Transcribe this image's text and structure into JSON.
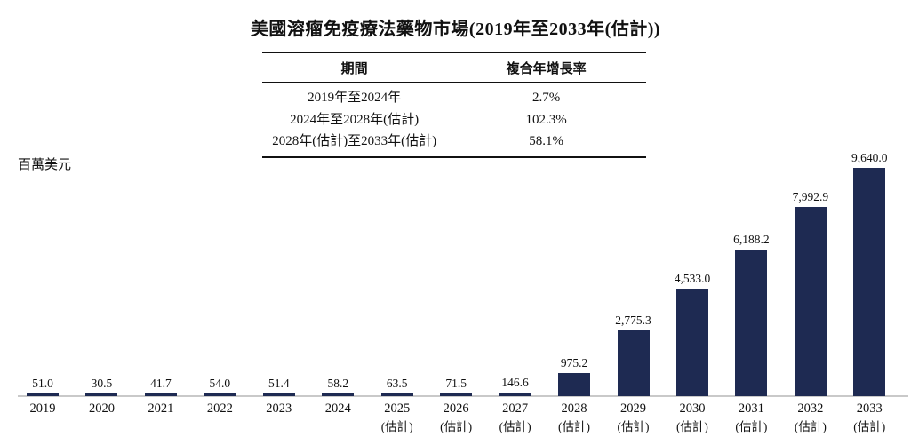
{
  "table": {
    "headers": [
      "期間",
      "複合年增長率"
    ],
    "rows": [
      [
        "2019年至2024年",
        "2.7%"
      ],
      [
        "2024年至2028年(估計)",
        "102.3%"
      ],
      [
        "2028年(估計)至2033年(估計)",
        "58.1%"
      ]
    ]
  },
  "chart_data": {
    "type": "bar",
    "title": "美國溶瘤免疫療法藥物市場(2019年至2033年(估計))",
    "ylabel": "百萬美元",
    "unit": "百萬美元",
    "categories": [
      {
        "label": "2019",
        "sublabel": ""
      },
      {
        "label": "2020",
        "sublabel": ""
      },
      {
        "label": "2021",
        "sublabel": ""
      },
      {
        "label": "2022",
        "sublabel": ""
      },
      {
        "label": "2023",
        "sublabel": ""
      },
      {
        "label": "2024",
        "sublabel": ""
      },
      {
        "label": "2025",
        "sublabel": "(估計)"
      },
      {
        "label": "2026",
        "sublabel": "(估計)"
      },
      {
        "label": "2027",
        "sublabel": "(估計)"
      },
      {
        "label": "2028",
        "sublabel": "(估計)"
      },
      {
        "label": "2029",
        "sublabel": "(估計)"
      },
      {
        "label": "2030",
        "sublabel": "(估計)"
      },
      {
        "label": "2031",
        "sublabel": "(估計)"
      },
      {
        "label": "2032",
        "sublabel": "(估計)"
      },
      {
        "label": "2033",
        "sublabel": "(估計)"
      }
    ],
    "values": [
      51.0,
      30.5,
      41.7,
      54.0,
      51.4,
      58.2,
      63.5,
      71.5,
      146.6,
      975.2,
      2775.3,
      4533.0,
      6188.2,
      7992.9,
      9640.0
    ],
    "value_labels": [
      "51.0",
      "30.5",
      "41.7",
      "54.0",
      "51.4",
      "58.2",
      "63.5",
      "71.5",
      "146.6",
      "975.2",
      "2,775.3",
      "4,533.0",
      "6,188.2",
      "7,992.9",
      "9,640.0"
    ],
    "ylim": [
      0,
      9640
    ],
    "grid": "off",
    "legend": "none",
    "bar_color": "#1e2a52",
    "axis_color": "#c9c9c9"
  }
}
